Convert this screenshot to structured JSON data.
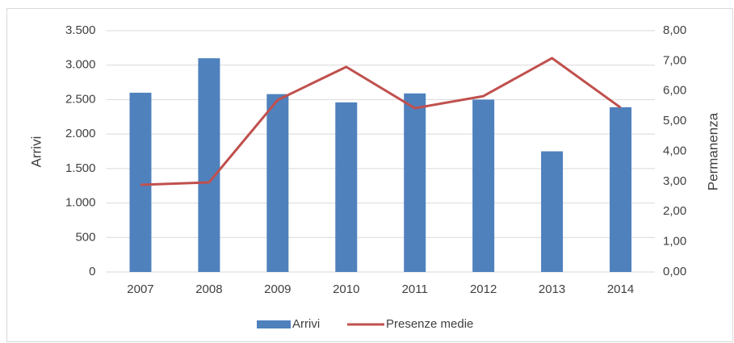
{
  "chart_data": {
    "type": "bar+line",
    "categories": [
      "2007",
      "2008",
      "2009",
      "2010",
      "2011",
      "2012",
      "2013",
      "2014"
    ],
    "series": [
      {
        "name": "Arrivi",
        "type": "bar",
        "color": "#4f81bd",
        "axis": "y",
        "values": [
          2600,
          3100,
          2580,
          2460,
          2590,
          2500,
          1750,
          2390
        ]
      },
      {
        "name": "Presenze medie",
        "type": "line",
        "color": "#c0504d",
        "axis": "y2",
        "values": [
          2.89,
          2.97,
          5.7,
          6.8,
          5.43,
          5.83,
          7.09,
          5.45
        ]
      }
    ],
    "ylabel": "Arrivi",
    "y2label": "Permanenza",
    "ylim": [
      0,
      3500
    ],
    "yticks": [
      0,
      500,
      {
        "value": 1000,
        "label": "1.000"
      },
      {
        "value": 1500,
        "label": "1.500"
      },
      {
        "value": 2000,
        "label": "2.000"
      },
      {
        "value": 2500,
        "label": "2.500"
      },
      {
        "value": 3000,
        "label": "3.000"
      },
      {
        "value": 3500,
        "label": "3.500"
      }
    ],
    "y2lim": [
      0,
      8
    ],
    "y2ticks": [
      {
        "value": 0,
        "label": "0,00"
      },
      {
        "value": 1,
        "label": "1,00"
      },
      {
        "value": 2,
        "label": "2,00"
      },
      {
        "value": 3,
        "label": "3,00"
      },
      {
        "value": 4,
        "label": "4,00"
      },
      {
        "value": 5,
        "label": "5,00"
      },
      {
        "value": 6,
        "label": "6,00"
      },
      {
        "value": 7,
        "label": "7,00"
      },
      {
        "value": 8,
        "label": "8,00"
      }
    ],
    "grid": true,
    "legend": "bottom"
  }
}
